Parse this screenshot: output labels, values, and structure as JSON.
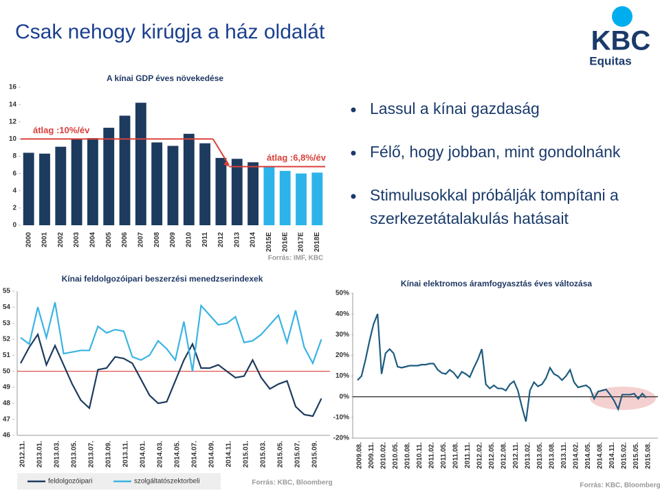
{
  "title": "Csak nehogy kirúgja a ház oldalát",
  "logo": {
    "brand": "KBC",
    "sub": "Equitas"
  },
  "bullets": [
    [
      "Lassul a kínai gazdaság"
    ],
    [
      "Félő, hogy jobban, mint gondolnánk"
    ],
    [
      "Stimulusokkal próbálják tompítani a",
      "szerkezetátalakulás hatásait"
    ]
  ],
  "chart_data": [
    {
      "type": "bar",
      "title": "A kínai GDP éves növekedése",
      "source": "Forrás: IMF, KBC",
      "categories": [
        "2000",
        "2001",
        "2002",
        "2003",
        "2004",
        "2005",
        "2006",
        "2007",
        "2008",
        "2009",
        "2010",
        "2011",
        "2012",
        "2013",
        "2014",
        "2015E",
        "2016E",
        "2017E",
        "2018E"
      ],
      "values": [
        8.4,
        8.3,
        9.1,
        10.0,
        10.1,
        11.3,
        12.7,
        14.2,
        9.6,
        9.2,
        10.6,
        9.5,
        7.8,
        7.7,
        7.3,
        6.8,
        6.3,
        6.0,
        6.1
      ],
      "colors": [
        "#1c3b5e",
        "#1c3b5e",
        "#1c3b5e",
        "#1c3b5e",
        "#1c3b5e",
        "#1c3b5e",
        "#1c3b5e",
        "#1c3b5e",
        "#1c3b5e",
        "#1c3b5e",
        "#1c3b5e",
        "#1c3b5e",
        "#1c3b5e",
        "#1c3b5e",
        "#1c3b5e",
        "#2db3ea",
        "#2db3ea",
        "#2db3ea",
        "#2db3ea"
      ],
      "ylim": [
        0,
        16
      ],
      "yticks": [
        0,
        2,
        4,
        6,
        8,
        10,
        12,
        14,
        16
      ],
      "reference_lines": [
        {
          "value": 10,
          "label": "átlag :10%/év",
          "color": "#d9403a"
        },
        {
          "value": 6.8,
          "label": "átlag :6,8%/év",
          "color": "#d9403a"
        }
      ]
    },
    {
      "type": "line",
      "title": "Kínai feldolgozóipari beszerzési menedzserindexek",
      "categories": [
        "2012.11.",
        null,
        "2013.01.",
        null,
        "2013.03.",
        null,
        "2013.05.",
        null,
        "2013.07.",
        null,
        "2013.09.",
        null,
        "2013.11.",
        null,
        "2014.01.",
        null,
        "2014.03.",
        null,
        "2014.05.",
        null,
        "2014.07.",
        null,
        "2014.09.",
        null,
        "2014.11.",
        null,
        "2015.01.",
        null,
        "2015.03.",
        null,
        "2015.05.",
        null,
        "2015.07.",
        null,
        "2015.09.",
        null
      ],
      "series": [
        {
          "name": "feldolgozóipari",
          "color": "#1c3b5e",
          "values": [
            50.5,
            51.5,
            52.3,
            50.4,
            51.6,
            50.4,
            49.2,
            48.2,
            47.7,
            50.1,
            50.2,
            50.9,
            50.8,
            50.5,
            49.5,
            48.5,
            48.0,
            48.1,
            49.4,
            50.7,
            51.7,
            50.2,
            50.2,
            50.4,
            50.0,
            49.6,
            49.7,
            50.7,
            49.6,
            48.9,
            49.2,
            49.4,
            47.8,
            47.3,
            47.2,
            48.3
          ]
        },
        {
          "name": "szolgáltatószektorbeli",
          "color": "#3ab3e3",
          "values": [
            52.1,
            51.7,
            54.0,
            52.1,
            54.3,
            51.1,
            51.2,
            51.3,
            51.3,
            52.8,
            52.4,
            52.6,
            52.5,
            50.9,
            50.7,
            51.0,
            51.9,
            51.4,
            50.7,
            53.1,
            50.0,
            54.1,
            53.5,
            52.9,
            53.0,
            53.4,
            51.8,
            51.9,
            52.3,
            52.9,
            53.5,
            51.8,
            53.8,
            51.5,
            50.5,
            52.0
          ]
        }
      ],
      "ylim": [
        46,
        55
      ],
      "yticks": [
        46,
        47,
        48,
        49,
        50,
        51,
        52,
        53,
        54,
        55
      ],
      "reference_lines": [
        {
          "value": 50,
          "color": "#d9403a"
        }
      ],
      "source": "Forrás: KBC, Bloomberg"
    },
    {
      "type": "line",
      "title": "Kínai elektromos áramfogyasztás éves változása",
      "source": "Forrás: KBC, Bloomberg",
      "categories": [
        "2009.08.",
        null,
        null,
        "2009.11.",
        null,
        null,
        "2010.02.",
        null,
        null,
        "2010.05.",
        null,
        null,
        "2010.08.",
        null,
        null,
        "2010.11.",
        null,
        null,
        "2011.02.",
        null,
        null,
        "2011.05.",
        null,
        null,
        "2011.08.",
        null,
        null,
        "2011.11.",
        null,
        null,
        "2012.02.",
        null,
        null,
        "2012.05.",
        null,
        null,
        "2012.08.",
        null,
        null,
        "2012.11.",
        null,
        null,
        "2013.02.",
        null,
        null,
        "2013.05.",
        null,
        null,
        "2013.08.",
        null,
        null,
        "2013.11.",
        null,
        null,
        "2014.02.",
        null,
        null,
        "2014.05.",
        null,
        null,
        "2014.08.",
        null,
        null,
        "2014.11.",
        null,
        null,
        "2015.02.",
        null,
        null,
        "2015.05.",
        null,
        null,
        "2015.08."
      ],
      "values": [
        8,
        10,
        18,
        27,
        35,
        40,
        11,
        21,
        23,
        21,
        14.5,
        14,
        14.5,
        15,
        15,
        15,
        15.5,
        15.5,
        16,
        16,
        13,
        11.5,
        11,
        13,
        11.5,
        9,
        12,
        11,
        9.5,
        14,
        18,
        23,
        6,
        4,
        5.5,
        4,
        4,
        3,
        6,
        7.5,
        3,
        -5,
        -12,
        3,
        7,
        5,
        6,
        9,
        14,
        11,
        10,
        8,
        10,
        13,
        7,
        4.5,
        5,
        5.5,
        4,
        -1,
        2.5,
        3,
        3.5,
        1,
        -2,
        -6,
        1,
        1,
        1,
        1.5,
        -1,
        1.5,
        -0.5
      ],
      "color": "#1c5a7e",
      "ylim": [
        -20,
        50
      ],
      "yticks": [
        {
          "value": -20,
          "label": "-20%"
        },
        {
          "value": -10,
          "label": "-10%"
        },
        {
          "value": 0,
          "label": "0%"
        },
        {
          "value": 10,
          "label": "10%"
        },
        {
          "value": 20,
          "label": "20%"
        },
        {
          "value": 30,
          "label": "30%"
        },
        {
          "value": 40,
          "label": "40%"
        },
        {
          "value": 50,
          "label": "50%"
        }
      ]
    }
  ]
}
